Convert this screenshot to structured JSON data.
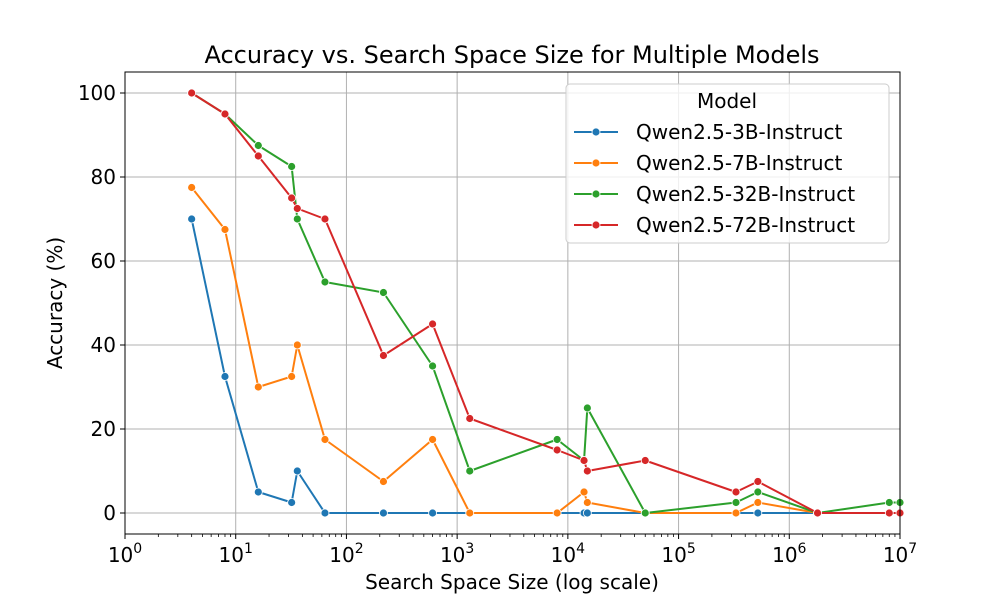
{
  "chart_data": {
    "type": "line",
    "title": "Accuracy vs. Search Space Size for Multiple Models",
    "xlabel": "Search Space Size (log scale)",
    "ylabel": "Accuracy (%)",
    "x_scale": "log",
    "xlim": [
      1,
      10000000
    ],
    "ylim": [
      -5,
      105
    ],
    "grid": true,
    "legend_title": "Model",
    "legend_placement": "top-right",
    "x_ticks": [
      {
        "value": 1,
        "base": "10",
        "exp": "0"
      },
      {
        "value": 10,
        "base": "10",
        "exp": "1"
      },
      {
        "value": 100,
        "base": "10",
        "exp": "2"
      },
      {
        "value": 1000,
        "base": "10",
        "exp": "3"
      },
      {
        "value": 10000,
        "base": "10",
        "exp": "4"
      },
      {
        "value": 100000,
        "base": "10",
        "exp": "5"
      },
      {
        "value": 1000000,
        "base": "10",
        "exp": "6"
      },
      {
        "value": 10000000,
        "base": "10",
        "exp": "7"
      }
    ],
    "y_ticks": [
      {
        "value": 0,
        "label": "0"
      },
      {
        "value": 20,
        "label": "20"
      },
      {
        "value": 40,
        "label": "40"
      },
      {
        "value": 60,
        "label": "60"
      },
      {
        "value": 80,
        "label": "80"
      },
      {
        "value": 100,
        "label": "100"
      }
    ],
    "series": [
      {
        "name": "Qwen2.5-3B-Instruct",
        "color": "#1f77b4",
        "points": [
          [
            4,
            70
          ],
          [
            8,
            32.5
          ],
          [
            16,
            5
          ],
          [
            32,
            2.5
          ],
          [
            36,
            10
          ],
          [
            64,
            0
          ],
          [
            216,
            0
          ],
          [
            600,
            0
          ],
          [
            1300,
            0
          ],
          [
            14000,
            0
          ],
          [
            15000,
            0
          ],
          [
            50000,
            0
          ],
          [
            520000,
            0
          ],
          [
            1800000,
            0
          ],
          [
            8000000,
            0
          ],
          [
            10000000,
            0
          ]
        ]
      },
      {
        "name": "Qwen2.5-7B-Instruct",
        "color": "#ff7f0e",
        "points": [
          [
            4,
            77.5
          ],
          [
            8,
            67.5
          ],
          [
            16,
            30
          ],
          [
            32,
            32.5
          ],
          [
            36,
            40
          ],
          [
            64,
            17.5
          ],
          [
            216,
            7.5
          ],
          [
            600,
            17.5
          ],
          [
            1300,
            0
          ],
          [
            8000,
            0
          ],
          [
            14000,
            5
          ],
          [
            15000,
            2.5
          ],
          [
            50000,
            0
          ],
          [
            330000,
            0
          ],
          [
            520000,
            2.5
          ],
          [
            1800000,
            0
          ],
          [
            8000000,
            0
          ],
          [
            10000000,
            0
          ]
        ]
      },
      {
        "name": "Qwen2.5-32B-Instruct",
        "color": "#2ca02c",
        "points": [
          [
            4,
            100
          ],
          [
            8,
            95
          ],
          [
            16,
            87.5
          ],
          [
            32,
            82.5
          ],
          [
            36,
            70
          ],
          [
            64,
            55
          ],
          [
            216,
            52.5
          ],
          [
            600,
            35
          ],
          [
            1300,
            10
          ],
          [
            8000,
            17.5
          ],
          [
            14000,
            12.5
          ],
          [
            15000,
            25
          ],
          [
            50000,
            0
          ],
          [
            330000,
            2.5
          ],
          [
            520000,
            5
          ],
          [
            1800000,
            0
          ],
          [
            8000000,
            2.5
          ],
          [
            10000000,
            2.5
          ]
        ]
      },
      {
        "name": "Qwen2.5-72B-Instruct",
        "color": "#d62728",
        "points": [
          [
            4,
            100
          ],
          [
            8,
            95
          ],
          [
            16,
            85
          ],
          [
            32,
            75
          ],
          [
            36,
            72.5
          ],
          [
            64,
            70
          ],
          [
            216,
            37.5
          ],
          [
            600,
            45
          ],
          [
            1300,
            22.5
          ],
          [
            8000,
            15
          ],
          [
            14000,
            12.5
          ],
          [
            15000,
            10
          ],
          [
            50000,
            12.5
          ],
          [
            330000,
            5
          ],
          [
            520000,
            7.5
          ],
          [
            1800000,
            0
          ],
          [
            8000000,
            0
          ],
          [
            10000000,
            0
          ]
        ]
      }
    ]
  }
}
